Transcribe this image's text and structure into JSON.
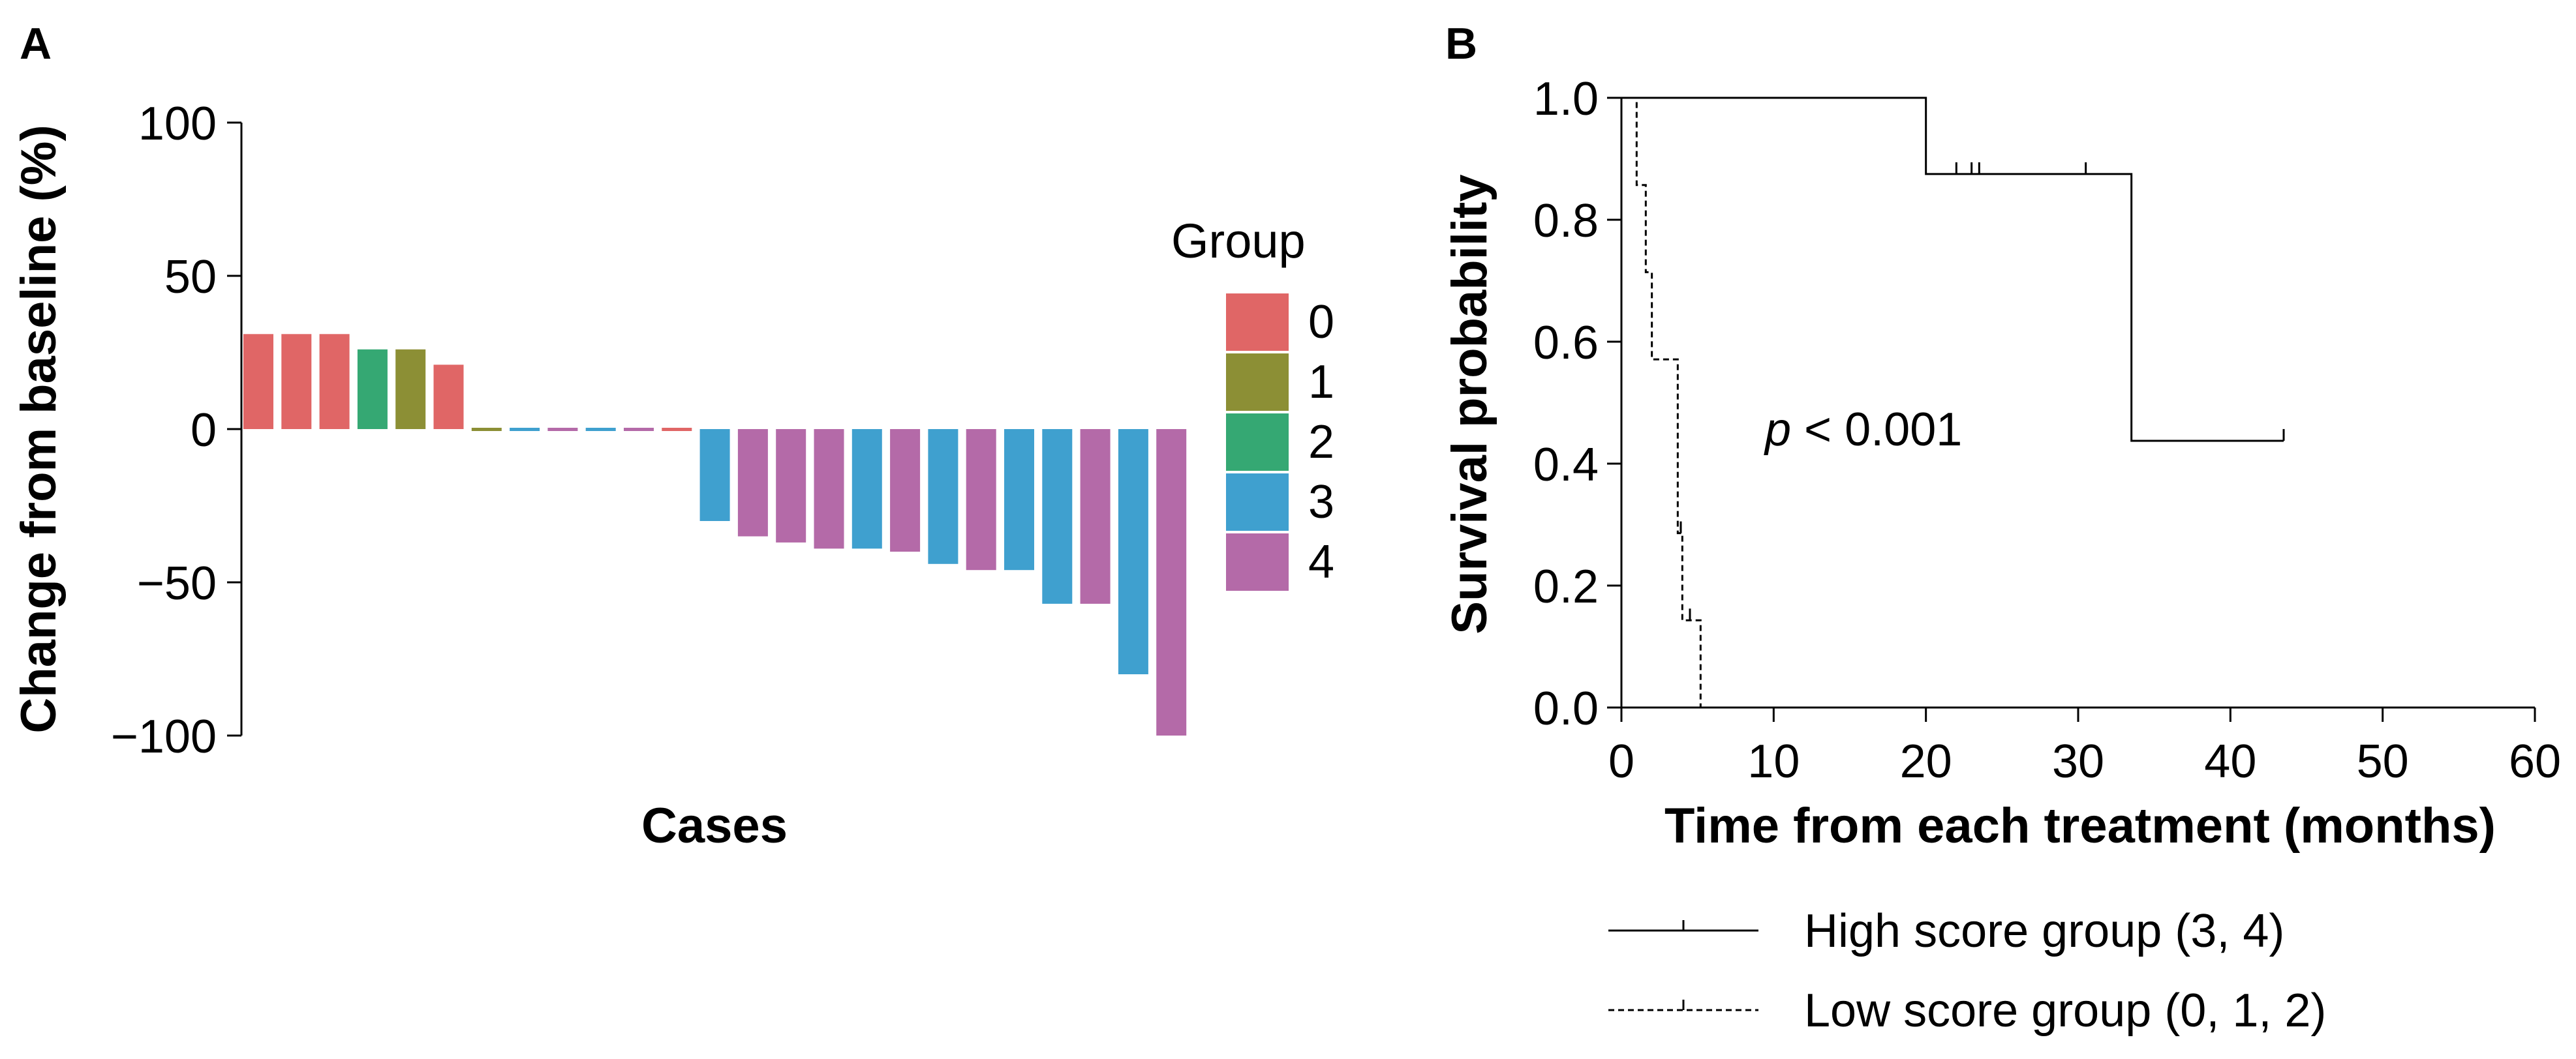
{
  "chart_data": [
    {
      "panel_label": "A",
      "type": "bar",
      "title": "",
      "xlabel": "Cases",
      "ylabel": "Change from baseline (%)",
      "ylim": [
        -100,
        100
      ],
      "yticks": [
        {
          "value": 100,
          "label": "100"
        },
        {
          "value": 50,
          "label": "50"
        },
        {
          "value": 0,
          "label": "0"
        },
        {
          "value": -50,
          "label": "−50"
        },
        {
          "value": -100,
          "label": "−100"
        }
      ],
      "legend": {
        "title": "Group",
        "position": "right",
        "entries": [
          {
            "label": "0",
            "color": "#e06666"
          },
          {
            "label": "1",
            "color": "#8c8f35"
          },
          {
            "label": "2",
            "color": "#35a873"
          },
          {
            "label": "3",
            "color": "#3fa0cf"
          },
          {
            "label": "4",
            "color": "#b46aa8"
          }
        ]
      },
      "bars": [
        {
          "value": 31,
          "group": 0
        },
        {
          "value": 31,
          "group": 0
        },
        {
          "value": 31,
          "group": 0
        },
        {
          "value": 26,
          "group": 2
        },
        {
          "value": 26,
          "group": 1
        },
        {
          "value": 21,
          "group": 0
        },
        {
          "value": 0,
          "group": 1
        },
        {
          "value": 0,
          "group": 3
        },
        {
          "value": 0,
          "group": 4
        },
        {
          "value": 0,
          "group": 3
        },
        {
          "value": 0,
          "group": 4
        },
        {
          "value": 0,
          "group": 0
        },
        {
          "value": -30,
          "group": 3
        },
        {
          "value": -35,
          "group": 4
        },
        {
          "value": -37,
          "group": 4
        },
        {
          "value": -39,
          "group": 4
        },
        {
          "value": -39,
          "group": 3
        },
        {
          "value": -40,
          "group": 4
        },
        {
          "value": -44,
          "group": 3
        },
        {
          "value": -46,
          "group": 4
        },
        {
          "value": -46,
          "group": 3
        },
        {
          "value": -57,
          "group": 3
        },
        {
          "value": -57,
          "group": 4
        },
        {
          "value": -80,
          "group": 3
        },
        {
          "value": -100,
          "group": 4
        }
      ]
    },
    {
      "panel_label": "B",
      "type": "line",
      "title": "",
      "xlabel": "Time from each treatment (months)",
      "ylabel": "Survival probability",
      "xlim": [
        0,
        60
      ],
      "ylim": [
        0,
        1
      ],
      "xticks": [
        "0",
        "10",
        "20",
        "30",
        "40",
        "50",
        "60"
      ],
      "yticks": [
        "0.0",
        "0.2",
        "0.4",
        "0.6",
        "0.8",
        "1.0"
      ],
      "annotation": {
        "italic": "p",
        "text": " < 0.001"
      },
      "series": [
        {
          "name": "High score group (3, 4)",
          "style": "solid",
          "steps": [
            [
              0,
              1.0
            ],
            [
              20,
              1.0
            ],
            [
              20,
              0.875
            ],
            [
              33.5,
              0.875
            ],
            [
              33.5,
              0.4375
            ],
            [
              43.5,
              0.4375
            ]
          ],
          "censored": [
            [
              22,
              0.875
            ],
            [
              23,
              0.875
            ],
            [
              23.5,
              0.875
            ],
            [
              30.5,
              0.875
            ],
            [
              43.5,
              0.4375
            ]
          ]
        },
        {
          "name": "Low score group (0, 1, 2)",
          "style": "dashed",
          "steps": [
            [
              0,
              1.0
            ],
            [
              1,
              1.0
            ],
            [
              1,
              0.857
            ],
            [
              1.6,
              0.857
            ],
            [
              1.6,
              0.714
            ],
            [
              2,
              0.714
            ],
            [
              2,
              0.571
            ],
            [
              3.7,
              0.571
            ],
            [
              3.7,
              0.286
            ],
            [
              4,
              0.286
            ],
            [
              4,
              0.143
            ],
            [
              5.2,
              0.143
            ],
            [
              5.2,
              0.0
            ]
          ],
          "censored": [
            [
              3.9,
              0.286
            ],
            [
              4.5,
              0.143
            ]
          ]
        }
      ]
    }
  ]
}
